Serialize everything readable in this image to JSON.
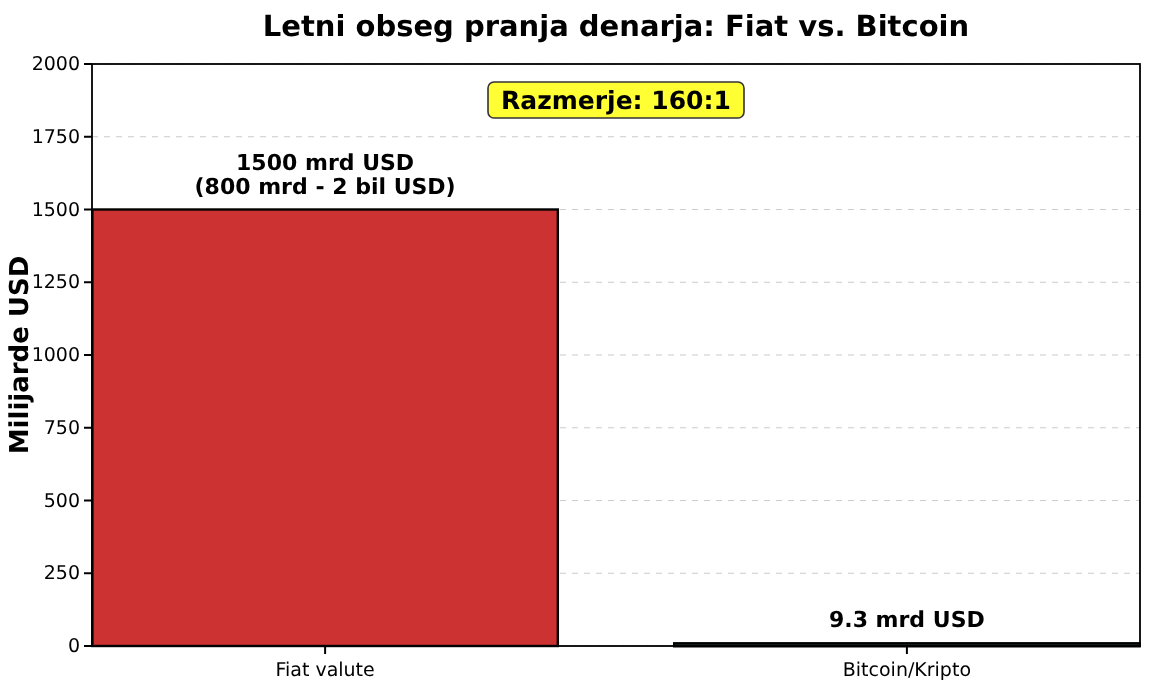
{
  "chart_data": {
    "type": "bar",
    "title": "Letni obseg pranja denarja: Fiat vs. Bitcoin",
    "ylabel": "Milijarde USD",
    "categories": [
      "Fiat valute",
      "Bitcoin/Kripto"
    ],
    "values": [
      1500,
      9.3
    ],
    "colors": [
      "#cd3232",
      "#1e3d2f"
    ],
    "value_labels": [
      "1500 mrd USD\n(800 mrd - 2 bil USD)",
      "9.3 mrd USD"
    ],
    "ylim": [
      0,
      2000
    ],
    "yticks": [
      0,
      250,
      500,
      750,
      1000,
      1250,
      1500,
      1750,
      2000
    ],
    "grid": "y",
    "annotations": [
      "Razmerje: 160:1"
    ]
  }
}
